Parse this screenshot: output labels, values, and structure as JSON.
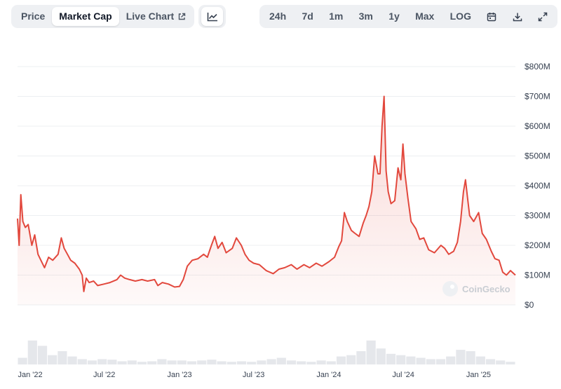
{
  "tabs": [
    {
      "label": "Price",
      "active": false
    },
    {
      "label": "Market Cap",
      "active": true
    },
    {
      "label": "Live Chart",
      "active": false
    }
  ],
  "ranges": [
    "24h",
    "7d",
    "1m",
    "3m",
    "1y",
    "Max",
    "LOG"
  ],
  "watermark": "CoinGecko",
  "icons": {
    "chart_type": "line-chart-icon",
    "calendar": "calendar-icon",
    "download": "download-icon",
    "expand": "expand-icon",
    "external": "external-link-icon"
  },
  "colors": {
    "line": "#e2483d",
    "fill": "#fbe1df",
    "volume": "#e5e7eb",
    "grid": "#eceff2"
  },
  "chart_data": {
    "type": "area",
    "ylabel": "",
    "xlabel": "",
    "ylim": [
      0,
      800000000
    ],
    "y_ticks": [
      "$0",
      "$100M",
      "$200M",
      "$300M",
      "$400M",
      "$500M",
      "$600M",
      "$700M",
      "$800M"
    ],
    "x_ticks": [
      "Jan '22",
      "Jul '22",
      "Jan '23",
      "Jul '23",
      "Jan '24",
      "Jul '24",
      "Jan '25"
    ],
    "x_range": [
      "2021-12-01",
      "2025-04-01"
    ],
    "grid": true,
    "series": [
      {
        "values_unit": "USD millions",
        "points": [
          [
            "2021-12-01",
            290
          ],
          [
            "2021-12-05",
            200
          ],
          [
            "2021-12-09",
            370
          ],
          [
            "2021-12-14",
            280
          ],
          [
            "2021-12-20",
            260
          ],
          [
            "2021-12-27",
            270
          ],
          [
            "2022-01-05",
            200
          ],
          [
            "2022-01-12",
            235
          ],
          [
            "2022-01-20",
            170
          ],
          [
            "2022-01-27",
            150
          ],
          [
            "2022-02-05",
            125
          ],
          [
            "2022-02-15",
            160
          ],
          [
            "2022-02-25",
            150
          ],
          [
            "2022-03-10",
            170
          ],
          [
            "2022-03-18",
            225
          ],
          [
            "2022-03-25",
            190
          ],
          [
            "2022-04-02",
            170
          ],
          [
            "2022-04-10",
            150
          ],
          [
            "2022-04-20",
            140
          ],
          [
            "2022-05-01",
            120
          ],
          [
            "2022-05-08",
            100
          ],
          [
            "2022-05-12",
            45
          ],
          [
            "2022-05-18",
            90
          ],
          [
            "2022-05-25",
            75
          ],
          [
            "2022-06-05",
            80
          ],
          [
            "2022-06-15",
            65
          ],
          [
            "2022-06-30",
            70
          ],
          [
            "2022-07-15",
            75
          ],
          [
            "2022-08-01",
            85
          ],
          [
            "2022-08-10",
            100
          ],
          [
            "2022-08-20",
            90
          ],
          [
            "2022-09-01",
            85
          ],
          [
            "2022-09-15",
            80
          ],
          [
            "2022-10-01",
            85
          ],
          [
            "2022-10-15",
            80
          ],
          [
            "2022-11-01",
            85
          ],
          [
            "2022-11-09",
            65
          ],
          [
            "2022-11-20",
            75
          ],
          [
            "2022-12-05",
            70
          ],
          [
            "2022-12-20",
            60
          ],
          [
            "2023-01-01",
            62
          ],
          [
            "2023-01-10",
            85
          ],
          [
            "2023-01-20",
            130
          ],
          [
            "2023-02-01",
            150
          ],
          [
            "2023-02-15",
            155
          ],
          [
            "2023-03-01",
            170
          ],
          [
            "2023-03-10",
            160
          ],
          [
            "2023-03-20",
            200
          ],
          [
            "2023-03-28",
            230
          ],
          [
            "2023-04-05",
            190
          ],
          [
            "2023-04-15",
            210
          ],
          [
            "2023-04-25",
            175
          ],
          [
            "2023-05-10",
            190
          ],
          [
            "2023-05-20",
            225
          ],
          [
            "2023-06-01",
            200
          ],
          [
            "2023-06-10",
            170
          ],
          [
            "2023-06-20",
            150
          ],
          [
            "2023-07-01",
            140
          ],
          [
            "2023-07-15",
            135
          ],
          [
            "2023-08-01",
            115
          ],
          [
            "2023-08-18",
            105
          ],
          [
            "2023-09-01",
            120
          ],
          [
            "2023-09-15",
            125
          ],
          [
            "2023-10-01",
            135
          ],
          [
            "2023-10-15",
            120
          ],
          [
            "2023-11-01",
            135
          ],
          [
            "2023-11-15",
            125
          ],
          [
            "2023-12-01",
            140
          ],
          [
            "2023-12-15",
            130
          ],
          [
            "2024-01-01",
            145
          ],
          [
            "2024-01-15",
            160
          ],
          [
            "2024-01-25",
            195
          ],
          [
            "2024-02-01",
            215
          ],
          [
            "2024-02-08",
            310
          ],
          [
            "2024-02-15",
            280
          ],
          [
            "2024-02-25",
            250
          ],
          [
            "2024-03-05",
            240
          ],
          [
            "2024-03-15",
            230
          ],
          [
            "2024-03-25",
            275
          ],
          [
            "2024-04-01",
            300
          ],
          [
            "2024-04-08",
            330
          ],
          [
            "2024-04-15",
            380
          ],
          [
            "2024-04-22",
            500
          ],
          [
            "2024-04-30",
            440
          ],
          [
            "2024-05-05",
            440
          ],
          [
            "2024-05-10",
            600
          ],
          [
            "2024-05-15",
            700
          ],
          [
            "2024-05-20",
            450
          ],
          [
            "2024-05-25",
            380
          ],
          [
            "2024-06-01",
            340
          ],
          [
            "2024-06-10",
            350
          ],
          [
            "2024-06-18",
            460
          ],
          [
            "2024-06-25",
            420
          ],
          [
            "2024-06-30",
            540
          ],
          [
            "2024-07-05",
            440
          ],
          [
            "2024-07-12",
            360
          ],
          [
            "2024-07-20",
            280
          ],
          [
            "2024-08-01",
            255
          ],
          [
            "2024-08-10",
            220
          ],
          [
            "2024-08-20",
            225
          ],
          [
            "2024-09-01",
            185
          ],
          [
            "2024-09-15",
            175
          ],
          [
            "2024-10-01",
            200
          ],
          [
            "2024-10-10",
            190
          ],
          [
            "2024-10-20",
            170
          ],
          [
            "2024-11-01",
            180
          ],
          [
            "2024-11-10",
            210
          ],
          [
            "2024-11-18",
            280
          ],
          [
            "2024-11-25",
            380
          ],
          [
            "2024-11-30",
            420
          ],
          [
            "2024-12-05",
            360
          ],
          [
            "2024-12-10",
            300
          ],
          [
            "2024-12-20",
            280
          ],
          [
            "2025-01-01",
            310
          ],
          [
            "2025-01-10",
            240
          ],
          [
            "2025-01-20",
            220
          ],
          [
            "2025-02-01",
            180
          ],
          [
            "2025-02-10",
            155
          ],
          [
            "2025-02-20",
            150
          ],
          [
            "2025-03-01",
            110
          ],
          [
            "2025-03-10",
            100
          ],
          [
            "2025-03-20",
            115
          ],
          [
            "2025-04-01",
            100
          ]
        ]
      }
    ],
    "volume": {
      "note": "relative trading-volume bars along the bottom, unlabeled",
      "relative_levels": [
        0.25,
        0.9,
        0.7,
        0.35,
        0.5,
        0.3,
        0.2,
        0.15,
        0.2,
        0.18,
        0.12,
        0.15,
        0.1,
        0.12,
        0.2,
        0.15,
        0.15,
        0.12,
        0.15,
        0.18,
        0.12,
        0.1,
        0.12,
        0.1,
        0.15,
        0.2,
        0.25,
        0.15,
        0.12,
        0.1,
        0.15,
        0.12,
        0.3,
        0.35,
        0.5,
        0.9,
        0.6,
        0.4,
        0.35,
        0.3,
        0.25,
        0.2,
        0.2,
        0.3,
        0.55,
        0.5,
        0.3,
        0.2,
        0.15,
        0.1
      ]
    }
  }
}
